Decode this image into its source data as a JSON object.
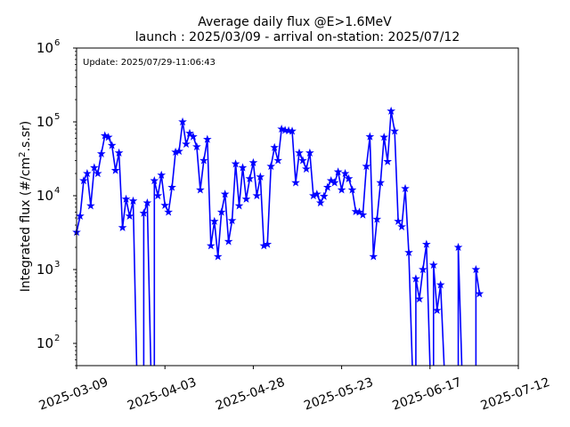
{
  "chart_data": {
    "type": "line",
    "title": "Average daily flux @E>1.6MeV",
    "subtitle": "launch : 2025/03/09 - arrival on-station: 2025/07/12",
    "annotation": "Update: 2025/07/29-11:06:43",
    "xlabel": "",
    "ylabel_main": "Integrated flux (#/cm",
    "ylabel_sup": "2",
    "ylabel_tail": ".s.sr)",
    "y_scale": "log",
    "ylim": [
      50,
      1000000
    ],
    "xlim": [
      "2025-03-09",
      "2025-07-12"
    ],
    "grid": false,
    "legend": "none",
    "x_ticks": [
      "2025-03-09",
      "2025-04-03",
      "2025-04-28",
      "2025-05-23",
      "2025-06-17",
      "2025-07-12"
    ],
    "y_ticks": [
      {
        "value": 100,
        "base": "10",
        "exp": "2"
      },
      {
        "value": 1000,
        "base": "10",
        "exp": "3"
      },
      {
        "value": 10000,
        "base": "10",
        "exp": "4"
      },
      {
        "value": 100000,
        "base": "10",
        "exp": "5"
      },
      {
        "value": 1000000,
        "base": "10",
        "exp": "6"
      }
    ],
    "series": [
      {
        "color": "#0000ff",
        "marker": "star",
        "x": [
          "2025-03-09",
          "2025-03-10",
          "2025-03-11",
          "2025-03-12",
          "2025-03-13",
          "2025-03-14",
          "2025-03-15",
          "2025-03-16",
          "2025-03-17",
          "2025-03-18",
          "2025-03-19",
          "2025-03-20",
          "2025-03-21",
          "2025-03-22",
          "2025-03-23",
          "2025-03-24",
          "2025-03-25",
          "2025-03-26",
          "2025-03-27",
          "2025-03-28",
          "2025-03-29",
          "2025-03-30",
          "2025-03-31",
          "2025-04-01",
          "2025-04-02",
          "2025-04-03",
          "2025-04-04",
          "2025-04-05",
          "2025-04-06",
          "2025-04-07",
          "2025-04-08",
          "2025-04-09",
          "2025-04-10",
          "2025-04-11",
          "2025-04-12",
          "2025-04-13",
          "2025-04-14",
          "2025-04-15",
          "2025-04-16",
          "2025-04-17",
          "2025-04-18",
          "2025-04-19",
          "2025-04-20",
          "2025-04-21",
          "2025-04-22",
          "2025-04-23",
          "2025-04-24",
          "2025-04-25",
          "2025-04-26",
          "2025-04-27",
          "2025-04-28",
          "2025-04-29",
          "2025-04-30",
          "2025-05-01",
          "2025-05-02",
          "2025-05-03",
          "2025-05-04",
          "2025-05-05",
          "2025-05-06",
          "2025-05-07",
          "2025-05-08",
          "2025-05-09",
          "2025-05-10",
          "2025-05-11",
          "2025-05-12",
          "2025-05-13",
          "2025-05-14",
          "2025-05-15",
          "2025-05-16",
          "2025-05-17",
          "2025-05-18",
          "2025-05-19",
          "2025-05-20",
          "2025-05-21",
          "2025-05-22",
          "2025-05-23",
          "2025-05-24",
          "2025-05-25",
          "2025-05-26",
          "2025-05-27",
          "2025-05-28",
          "2025-05-29",
          "2025-05-30",
          "2025-05-31",
          "2025-06-01",
          "2025-06-02",
          "2025-06-03",
          "2025-06-04",
          "2025-06-05",
          "2025-06-06",
          "2025-06-07",
          "2025-06-08",
          "2025-06-09",
          "2025-06-10",
          "2025-06-11",
          "2025-06-12",
          "2025-06-13",
          "2025-06-14",
          "2025-06-15",
          "2025-06-16",
          "2025-06-17",
          "2025-06-18",
          "2025-06-19",
          "2025-06-20",
          "2025-06-21",
          "2025-06-22",
          "2025-06-23",
          "2025-06-24",
          "2025-06-25",
          "2025-06-26",
          "2025-06-27",
          "2025-06-28",
          "2025-06-29",
          "2025-06-30",
          "2025-07-01"
        ],
        "values": [
          3200,
          5300,
          16000,
          20000,
          7300,
          24000,
          20000,
          37000,
          65000,
          62000,
          48000,
          22000,
          38000,
          3700,
          9000,
          5300,
          8500,
          null,
          null,
          5800,
          8000,
          null,
          16000,
          10000,
          19000,
          7400,
          6000,
          13000,
          39000,
          40000,
          100000,
          50000,
          70000,
          63000,
          46000,
          12000,
          30000,
          58000,
          2100,
          4500,
          1500,
          6000,
          10500,
          2400,
          4600,
          27000,
          7300,
          24000,
          9000,
          17000,
          28000,
          10000,
          18000,
          2100,
          2200,
          25000,
          45000,
          30000,
          80000,
          77000,
          76000,
          75000,
          15000,
          38000,
          30000,
          23000,
          38000,
          10000,
          10500,
          8000,
          9800,
          13000,
          16000,
          15000,
          21000,
          12000,
          20000,
          17000,
          12000,
          6100,
          6000,
          5500,
          25000,
          63000,
          1500,
          4800,
          15000,
          62000,
          29000,
          140000,
          75000,
          4500,
          3800,
          12500,
          1700,
          null,
          750,
          400,
          1000,
          2200,
          null,
          1150,
          280,
          620,
          null,
          null,
          null,
          null,
          2000,
          null,
          null,
          null,
          null,
          1000,
          470
        ]
      }
    ]
  }
}
